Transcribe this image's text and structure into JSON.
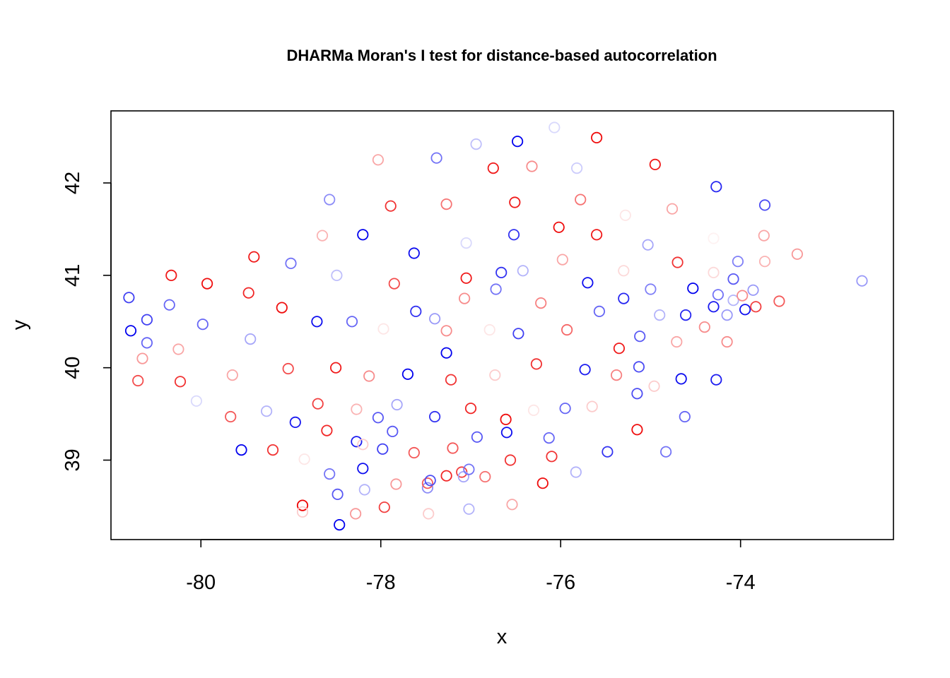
{
  "chart_data": {
    "type": "scatter",
    "title": "DHARMa Moran's I test for distance-based autocorrelation",
    "xlabel": "x",
    "ylabel": "y",
    "xlim": [
      -81.0,
      -72.3
    ],
    "ylim": [
      38.14,
      42.78
    ],
    "xticks": [
      -80,
      -78,
      -76,
      -74
    ],
    "yticks": [
      39,
      40,
      41,
      42
    ],
    "grid": false,
    "legend": "none",
    "color_scale": {
      "negative": "#0000ee",
      "positive": "#ee0000"
    },
    "points": [
      {
        "x": -80.8,
        "y": 40.76,
        "r": -0.75
      },
      {
        "x": -80.78,
        "y": 40.4,
        "r": -1.0
      },
      {
        "x": -80.6,
        "y": 40.52,
        "r": -0.75
      },
      {
        "x": -80.6,
        "y": 40.27,
        "r": -0.6
      },
      {
        "x": -80.65,
        "y": 40.1,
        "r": 0.4
      },
      {
        "x": -80.7,
        "y": 39.86,
        "r": 0.7
      },
      {
        "x": -80.35,
        "y": 40.68,
        "r": -0.6
      },
      {
        "x": -80.33,
        "y": 41.0,
        "r": 0.9
      },
      {
        "x": -80.25,
        "y": 40.2,
        "r": 0.35
      },
      {
        "x": -80.23,
        "y": 39.85,
        "r": 0.8
      },
      {
        "x": -80.05,
        "y": 39.64,
        "r": -0.15
      },
      {
        "x": -79.98,
        "y": 40.47,
        "r": -0.6
      },
      {
        "x": -79.93,
        "y": 40.91,
        "r": 0.95
      },
      {
        "x": -79.67,
        "y": 39.47,
        "r": 0.65
      },
      {
        "x": -79.65,
        "y": 39.92,
        "r": 0.35
      },
      {
        "x": -79.55,
        "y": 39.11,
        "r": -1.0
      },
      {
        "x": -79.47,
        "y": 40.81,
        "r": 0.85
      },
      {
        "x": -79.45,
        "y": 40.31,
        "r": -0.35
      },
      {
        "x": -79.41,
        "y": 41.2,
        "r": 0.9
      },
      {
        "x": -79.27,
        "y": 39.53,
        "r": -0.3
      },
      {
        "x": -79.2,
        "y": 39.11,
        "r": 0.8
      },
      {
        "x": -79.1,
        "y": 40.65,
        "r": 0.95
      },
      {
        "x": -79.03,
        "y": 39.99,
        "r": 0.7
      },
      {
        "x": -79.0,
        "y": 41.13,
        "r": -0.55
      },
      {
        "x": -78.95,
        "y": 39.41,
        "r": -0.9
      },
      {
        "x": -78.85,
        "y": 39.01,
        "r": 0.1
      },
      {
        "x": -78.87,
        "y": 38.51,
        "r": 1.0
      },
      {
        "x": -78.87,
        "y": 38.44,
        "r": 0.2
      },
      {
        "x": -78.71,
        "y": 40.5,
        "r": -0.95
      },
      {
        "x": -78.7,
        "y": 39.61,
        "r": 0.75
      },
      {
        "x": -78.65,
        "y": 41.43,
        "r": 0.3
      },
      {
        "x": -78.6,
        "y": 39.32,
        "r": 0.85
      },
      {
        "x": -78.57,
        "y": 38.85,
        "r": -0.55
      },
      {
        "x": -78.57,
        "y": 41.82,
        "r": -0.45
      },
      {
        "x": -78.5,
        "y": 40.0,
        "r": 0.9
      },
      {
        "x": -78.49,
        "y": 41.0,
        "r": -0.25
      },
      {
        "x": -78.48,
        "y": 38.63,
        "r": -0.65
      },
      {
        "x": -78.46,
        "y": 38.3,
        "r": -1.0
      },
      {
        "x": -78.32,
        "y": 40.5,
        "r": -0.6
      },
      {
        "x": -78.28,
        "y": 38.42,
        "r": 0.4
      },
      {
        "x": -78.27,
        "y": 39.55,
        "r": 0.3
      },
      {
        "x": -78.27,
        "y": 39.2,
        "r": -0.9
      },
      {
        "x": -78.2,
        "y": 39.17,
        "r": 0.2
      },
      {
        "x": -78.2,
        "y": 38.91,
        "r": -0.95
      },
      {
        "x": -78.2,
        "y": 41.44,
        "r": -1.0
      },
      {
        "x": -78.18,
        "y": 38.68,
        "r": -0.3
      },
      {
        "x": -78.13,
        "y": 39.91,
        "r": 0.45
      },
      {
        "x": -78.03,
        "y": 42.25,
        "r": 0.35
      },
      {
        "x": -78.03,
        "y": 39.46,
        "r": -0.65
      },
      {
        "x": -77.98,
        "y": 39.12,
        "r": -0.75
      },
      {
        "x": -77.97,
        "y": 40.42,
        "r": 0.1
      },
      {
        "x": -77.96,
        "y": 38.49,
        "r": 0.75
      },
      {
        "x": -77.89,
        "y": 41.75,
        "r": 0.8
      },
      {
        "x": -77.87,
        "y": 39.31,
        "r": -0.65
      },
      {
        "x": -77.85,
        "y": 40.91,
        "r": 0.7
      },
      {
        "x": -77.83,
        "y": 38.74,
        "r": 0.4
      },
      {
        "x": -77.82,
        "y": 39.6,
        "r": -0.35
      },
      {
        "x": -77.7,
        "y": 39.93,
        "r": -1.0
      },
      {
        "x": -77.63,
        "y": 41.24,
        "r": -0.95
      },
      {
        "x": -77.61,
        "y": 40.61,
        "r": -0.8
      },
      {
        "x": -77.63,
        "y": 39.08,
        "r": 0.65
      },
      {
        "x": -77.48,
        "y": 38.7,
        "r": -0.45
      },
      {
        "x": -77.48,
        "y": 38.75,
        "r": 0.65
      },
      {
        "x": -77.45,
        "y": 38.78,
        "r": -0.7
      },
      {
        "x": -77.47,
        "y": 38.42,
        "r": 0.2
      },
      {
        "x": -77.4,
        "y": 40.53,
        "r": -0.4
      },
      {
        "x": -77.4,
        "y": 39.47,
        "r": -0.8
      },
      {
        "x": -77.38,
        "y": 42.27,
        "r": -0.55
      },
      {
        "x": -77.27,
        "y": 40.4,
        "r": 0.45
      },
      {
        "x": -77.27,
        "y": 41.77,
        "r": 0.55
      },
      {
        "x": -77.27,
        "y": 40.16,
        "r": -1.0
      },
      {
        "x": -77.27,
        "y": 38.83,
        "r": 0.85
      },
      {
        "x": -77.22,
        "y": 39.87,
        "r": 0.8
      },
      {
        "x": -77.2,
        "y": 39.13,
        "r": 0.65
      },
      {
        "x": -77.1,
        "y": 38.87,
        "r": 0.75
      },
      {
        "x": -77.08,
        "y": 38.82,
        "r": -0.35
      },
      {
        "x": -77.07,
        "y": 40.75,
        "r": 0.45
      },
      {
        "x": -77.05,
        "y": 41.35,
        "r": -0.15
      },
      {
        "x": -77.05,
        "y": 40.97,
        "r": 0.9
      },
      {
        "x": -77.02,
        "y": 38.9,
        "r": -0.55
      },
      {
        "x": -77.02,
        "y": 38.47,
        "r": -0.3
      },
      {
        "x": -77.0,
        "y": 39.56,
        "r": 0.85
      },
      {
        "x": -76.94,
        "y": 42.42,
        "r": -0.25
      },
      {
        "x": -76.93,
        "y": 39.25,
        "r": -0.65
      },
      {
        "x": -76.84,
        "y": 38.82,
        "r": 0.55
      },
      {
        "x": -76.79,
        "y": 40.41,
        "r": 0.1
      },
      {
        "x": -76.75,
        "y": 42.16,
        "r": 0.9
      },
      {
        "x": -76.73,
        "y": 39.92,
        "r": 0.2
      },
      {
        "x": -76.72,
        "y": 40.85,
        "r": -0.55
      },
      {
        "x": -76.66,
        "y": 41.03,
        "r": -0.8
      },
      {
        "x": -76.61,
        "y": 39.44,
        "r": 0.95
      },
      {
        "x": -76.6,
        "y": 39.3,
        "r": -0.95
      },
      {
        "x": -76.56,
        "y": 39.0,
        "r": 0.8
      },
      {
        "x": -76.54,
        "y": 38.52,
        "r": 0.35
      },
      {
        "x": -76.52,
        "y": 41.44,
        "r": -0.8
      },
      {
        "x": -76.51,
        "y": 41.79,
        "r": 0.9
      },
      {
        "x": -76.48,
        "y": 42.45,
        "r": -1.0
      },
      {
        "x": -76.47,
        "y": 40.37,
        "r": -0.75
      },
      {
        "x": -76.42,
        "y": 41.05,
        "r": -0.3
      },
      {
        "x": -76.32,
        "y": 42.18,
        "r": 0.45
      },
      {
        "x": -76.3,
        "y": 39.54,
        "r": 0.1
      },
      {
        "x": -76.27,
        "y": 40.04,
        "r": 0.8
      },
      {
        "x": -76.22,
        "y": 40.7,
        "r": 0.5
      },
      {
        "x": -76.2,
        "y": 38.75,
        "r": 0.95
      },
      {
        "x": -76.13,
        "y": 39.24,
        "r": -0.6
      },
      {
        "x": -76.1,
        "y": 39.04,
        "r": 0.8
      },
      {
        "x": -76.07,
        "y": 42.6,
        "r": -0.15
      },
      {
        "x": -76.02,
        "y": 41.52,
        "r": 0.95
      },
      {
        "x": -75.98,
        "y": 41.17,
        "r": 0.35
      },
      {
        "x": -75.95,
        "y": 39.56,
        "r": -0.6
      },
      {
        "x": -75.93,
        "y": 40.41,
        "r": 0.6
      },
      {
        "x": -75.83,
        "y": 38.87,
        "r": -0.3
      },
      {
        "x": -75.82,
        "y": 42.16,
        "r": -0.2
      },
      {
        "x": -75.78,
        "y": 41.82,
        "r": 0.55
      },
      {
        "x": -75.73,
        "y": 39.98,
        "r": -0.9
      },
      {
        "x": -75.7,
        "y": 40.92,
        "r": -0.95
      },
      {
        "x": -75.65,
        "y": 39.58,
        "r": 0.2
      },
      {
        "x": -75.6,
        "y": 42.49,
        "r": 0.95
      },
      {
        "x": -75.6,
        "y": 41.44,
        "r": 0.9
      },
      {
        "x": -75.57,
        "y": 40.61,
        "r": -0.6
      },
      {
        "x": -75.48,
        "y": 39.09,
        "r": -0.8
      },
      {
        "x": -75.38,
        "y": 39.92,
        "r": 0.5
      },
      {
        "x": -75.35,
        "y": 40.21,
        "r": 0.9
      },
      {
        "x": -75.3,
        "y": 41.05,
        "r": 0.15
      },
      {
        "x": -75.28,
        "y": 41.65,
        "r": 0.1
      },
      {
        "x": -75.3,
        "y": 40.75,
        "r": -0.85
      },
      {
        "x": -75.15,
        "y": 39.33,
        "r": 0.95
      },
      {
        "x": -75.15,
        "y": 39.72,
        "r": -0.7
      },
      {
        "x": -75.13,
        "y": 40.01,
        "r": -0.7
      },
      {
        "x": -75.12,
        "y": 40.34,
        "r": -0.65
      },
      {
        "x": -75.03,
        "y": 41.33,
        "r": -0.35
      },
      {
        "x": -75.0,
        "y": 40.85,
        "r": -0.5
      },
      {
        "x": -74.96,
        "y": 39.8,
        "r": 0.2
      },
      {
        "x": -74.95,
        "y": 42.2,
        "r": 0.9
      },
      {
        "x": -74.9,
        "y": 40.57,
        "r": -0.3
      },
      {
        "x": -74.83,
        "y": 39.09,
        "r": -0.55
      },
      {
        "x": -74.76,
        "y": 41.72,
        "r": 0.35
      },
      {
        "x": -74.71,
        "y": 40.28,
        "r": 0.35
      },
      {
        "x": -74.7,
        "y": 41.14,
        "r": 0.8
      },
      {
        "x": -74.66,
        "y": 39.88,
        "r": -0.95
      },
      {
        "x": -74.62,
        "y": 39.47,
        "r": -0.6
      },
      {
        "x": -74.61,
        "y": 40.57,
        "r": -0.85
      },
      {
        "x": -74.53,
        "y": 40.86,
        "r": -1.0
      },
      {
        "x": -74.4,
        "y": 40.44,
        "r": 0.45
      },
      {
        "x": -74.3,
        "y": 41.03,
        "r": 0.15
      },
      {
        "x": -74.3,
        "y": 40.66,
        "r": -0.9
      },
      {
        "x": -74.3,
        "y": 41.4,
        "r": 0.05
      },
      {
        "x": -74.27,
        "y": 39.87,
        "r": -0.9
      },
      {
        "x": -74.27,
        "y": 41.96,
        "r": -0.85
      },
      {
        "x": -74.25,
        "y": 40.79,
        "r": -0.55
      },
      {
        "x": -74.15,
        "y": 40.57,
        "r": -0.4
      },
      {
        "x": -74.15,
        "y": 40.28,
        "r": 0.45
      },
      {
        "x": -74.08,
        "y": 40.96,
        "r": -0.65
      },
      {
        "x": -74.08,
        "y": 40.73,
        "r": -0.3
      },
      {
        "x": -74.03,
        "y": 41.15,
        "r": -0.5
      },
      {
        "x": -73.98,
        "y": 40.78,
        "r": 0.45
      },
      {
        "x": -73.95,
        "y": 40.63,
        "r": -0.95
      },
      {
        "x": -73.86,
        "y": 40.84,
        "r": -0.4
      },
      {
        "x": -73.83,
        "y": 40.66,
        "r": 0.75
      },
      {
        "x": -73.74,
        "y": 41.43,
        "r": 0.35
      },
      {
        "x": -73.73,
        "y": 41.15,
        "r": 0.3
      },
      {
        "x": -73.73,
        "y": 41.76,
        "r": -0.7
      },
      {
        "x": -73.57,
        "y": 40.72,
        "r": 0.65
      },
      {
        "x": -73.37,
        "y": 41.23,
        "r": 0.4
      },
      {
        "x": -72.65,
        "y": 40.94,
        "r": -0.4
      }
    ]
  }
}
